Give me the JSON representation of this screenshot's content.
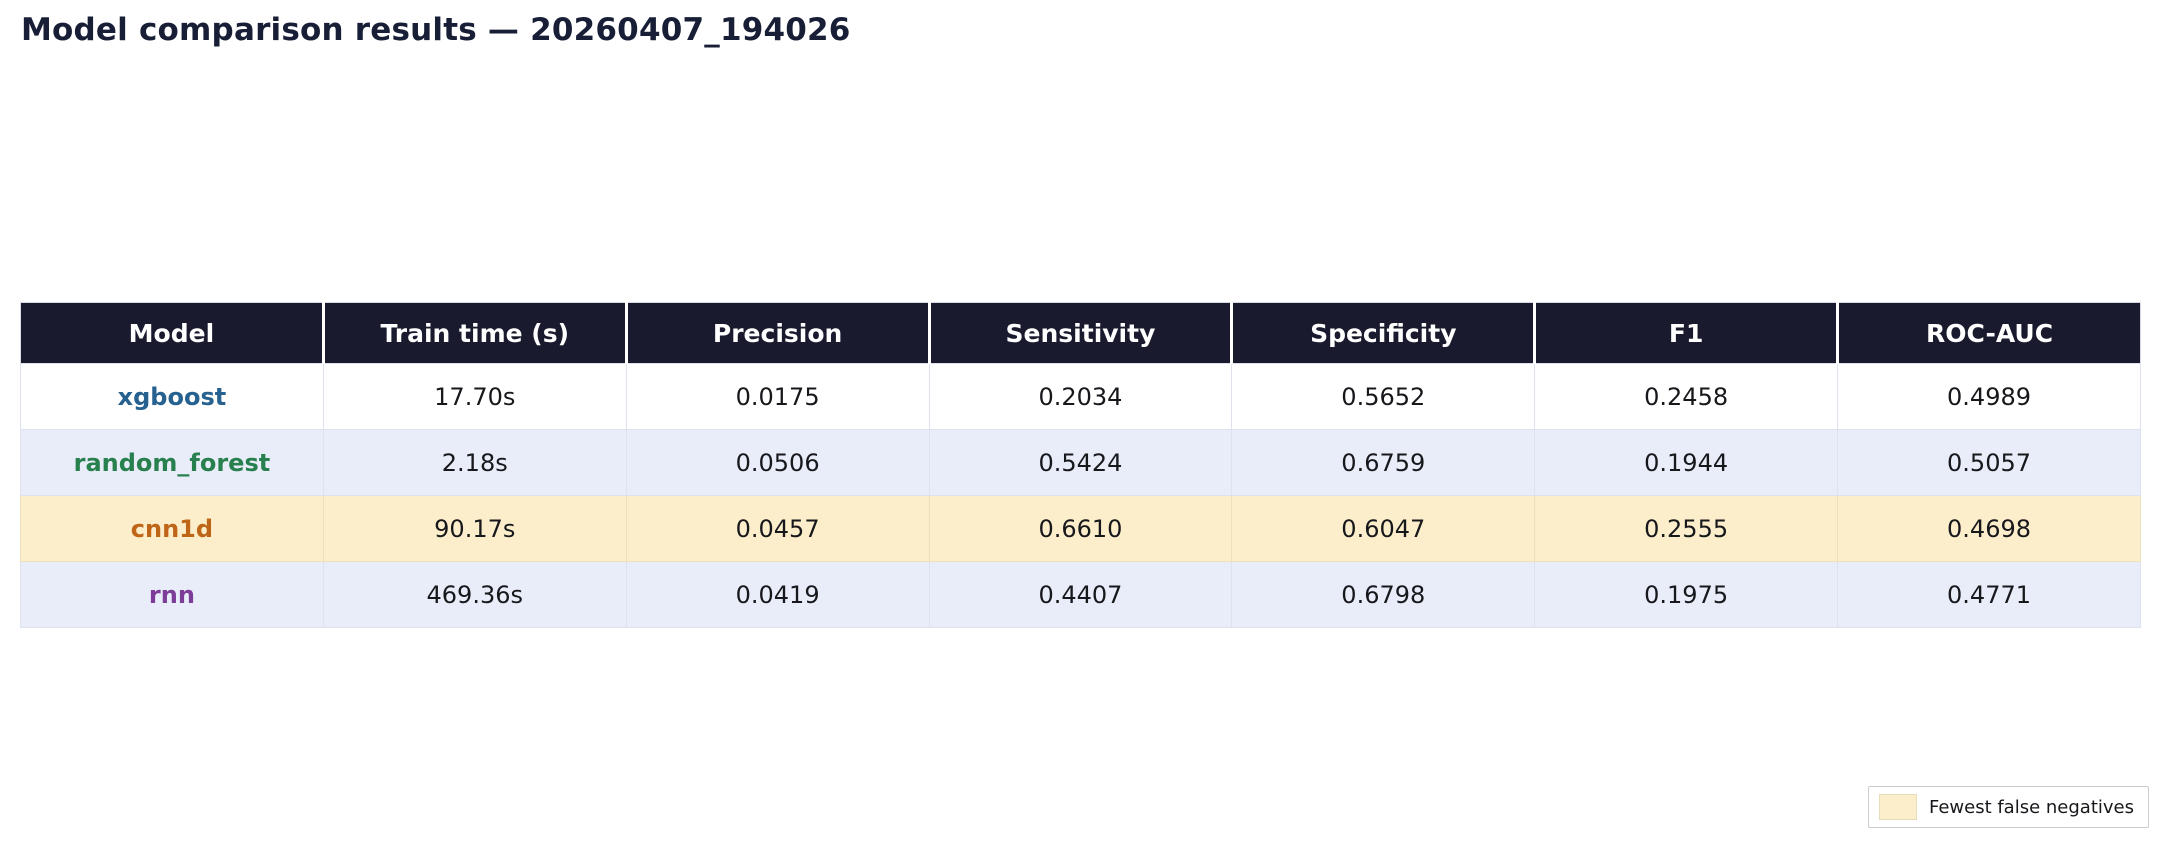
{
  "page": {
    "title": "Model comparison results — 20260407_194026"
  },
  "colors": {
    "header_bg": "#1a1a2e",
    "header_text": "#ffffff",
    "row_white_bg": "#ffffff",
    "row_alt_bg": "#e9edf9",
    "highlight_bg": "#fdeecb",
    "model_xgboost": "#27618f",
    "model_random_forest": "#27804e",
    "model_cnn1d": "#bf6517",
    "model_rnn": "#7d3c98"
  },
  "table": {
    "columns": {
      "model": "Model",
      "train_time": "Train time (s)",
      "precision": "Precision",
      "sensitivity": "Sensitivity",
      "specificity": "Specificity",
      "f1": "F1",
      "roc_auc": "ROC-AUC"
    },
    "rows": [
      {
        "model": "xgboost",
        "train_time": "17.70s",
        "precision": "0.0175",
        "sensitivity": "0.2034",
        "specificity": "0.5652",
        "f1": "0.2458",
        "roc_auc": "0.4989"
      },
      {
        "model": "random_forest",
        "train_time": "2.18s",
        "precision": "0.0506",
        "sensitivity": "0.5424",
        "specificity": "0.6759",
        "f1": "0.1944",
        "roc_auc": "0.5057"
      },
      {
        "model": "cnn1d",
        "train_time": "90.17s",
        "precision": "0.0457",
        "sensitivity": "0.6610",
        "specificity": "0.6047",
        "f1": "0.2555",
        "roc_auc": "0.4698"
      },
      {
        "model": "rnn",
        "train_time": "469.36s",
        "precision": "0.0419",
        "sensitivity": "0.4407",
        "specificity": "0.6798",
        "f1": "0.1975",
        "roc_auc": "0.4771"
      }
    ]
  },
  "legend": {
    "label": "Fewest false negatives"
  },
  "chart_data": {
    "type": "table",
    "title": "Model comparison results — 20260407_194026",
    "columns": [
      "Model",
      "Train time (s)",
      "Precision",
      "Sensitivity",
      "Specificity",
      "F1",
      "ROC-AUC"
    ],
    "rows": [
      [
        "xgboost",
        "17.70s",
        0.0175,
        0.2034,
        0.5652,
        0.2458,
        0.4989
      ],
      [
        "random_forest",
        "2.18s",
        0.0506,
        0.5424,
        0.6759,
        0.1944,
        0.5057
      ],
      [
        "cnn1d",
        "90.17s",
        0.0457,
        0.661,
        0.6047,
        0.2555,
        0.4698
      ],
      [
        "rnn",
        "469.36s",
        0.0419,
        0.4407,
        0.6798,
        0.1975,
        0.4771
      ]
    ],
    "highlighted_row": "cnn1d",
    "highlight_meaning": "Fewest false negatives",
    "row_striping": [
      "white",
      "alt",
      "highlight",
      "alt"
    ]
  }
}
